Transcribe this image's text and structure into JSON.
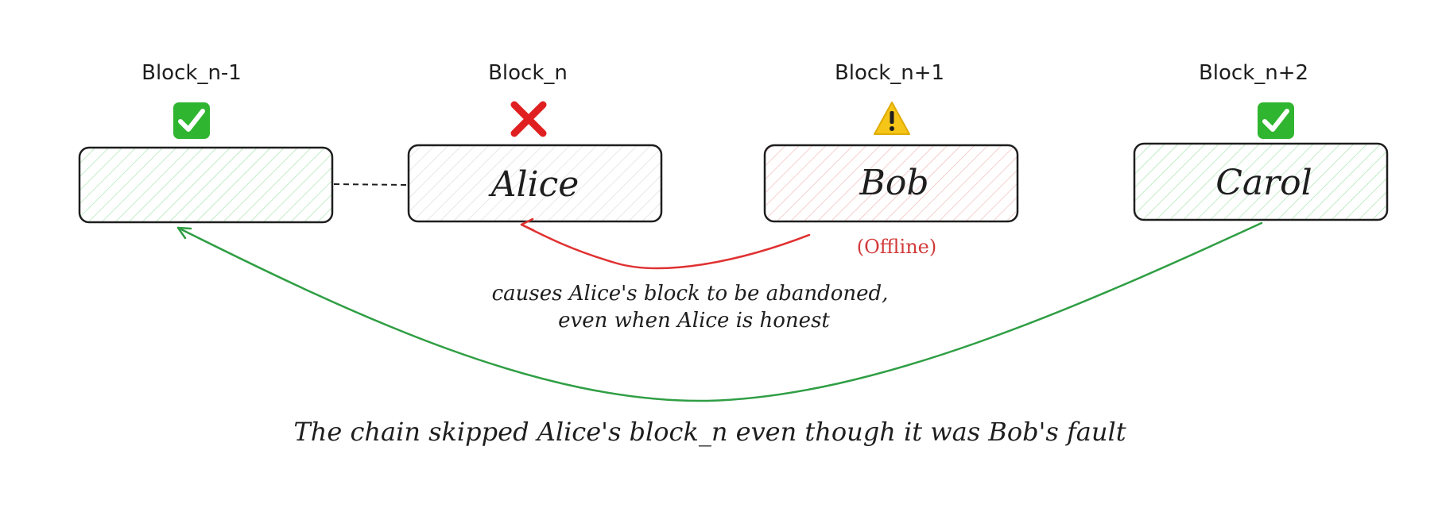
{
  "blocks": [
    {
      "header": "Block_n-1",
      "name": "",
      "status": "accepted",
      "status_icon": "check-mark-icon",
      "fill_color": "#b2f2bb"
    },
    {
      "header": "Block_n",
      "name": "Alice",
      "status": "abandoned",
      "status_icon": "cross-mark-icon",
      "fill_color": "#e9ecef"
    },
    {
      "header": "Block_n+1",
      "name": "Bob",
      "status": "warning",
      "status_icon": "warning-icon",
      "fill_color": "#ffc9c9"
    },
    {
      "header": "Block_n+2",
      "name": "Carol",
      "status": "accepted",
      "status_icon": "check-mark-icon",
      "fill_color": "#b2f2bb"
    }
  ],
  "annotations": {
    "offline": "(Offline)",
    "red_note_line1": "causes Alice's block to be abandoned,",
    "red_note_line2": "even when Alice is honest",
    "caption": "The chain skipped Alice's block_n even though it was Bob's fault"
  },
  "colors": {
    "stroke": "#1e1e1e",
    "red_arrow": "#e03131",
    "green_arrow": "#2f9e44",
    "check_bg": "#2fb52f",
    "cross": "#e02020",
    "warning": "#f5c518"
  }
}
